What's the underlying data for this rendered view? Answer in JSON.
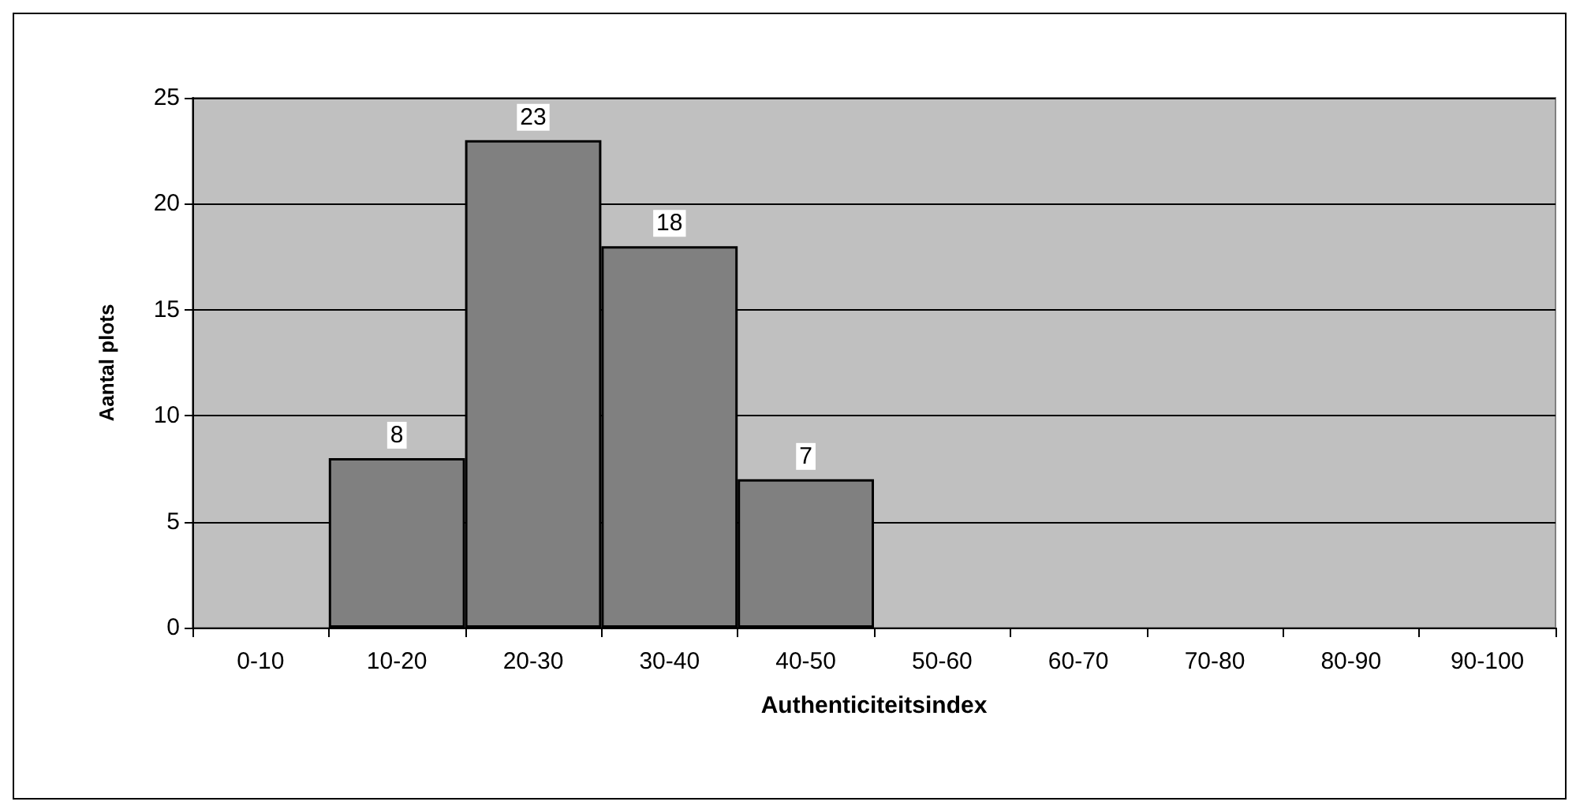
{
  "chart_data": {
    "type": "bar",
    "xlabel": "Authenticiteitsindex",
    "ylabel": "Aantal plots",
    "categories": [
      "0-10",
      "10-20",
      "20-30",
      "30-40",
      "40-50",
      "50-60",
      "60-70",
      "70-80",
      "80-90",
      "90-100"
    ],
    "values": [
      0,
      8,
      23,
      18,
      7,
      0,
      0,
      0,
      0,
      0
    ],
    "value_labels": [
      null,
      "8",
      "23",
      "18",
      "7",
      null,
      null,
      null,
      null,
      null
    ],
    "color": "#808080",
    "ylim": [
      0,
      25
    ],
    "yticks": [
      0,
      5,
      10,
      15,
      20,
      25
    ],
    "grid": "y"
  }
}
